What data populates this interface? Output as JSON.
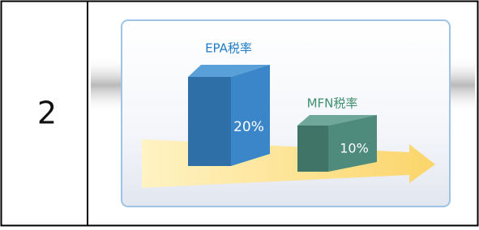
{
  "row": {
    "number": "2"
  },
  "illustration": {
    "bars": [
      {
        "label": "EPA税率",
        "value_label": "20%"
      },
      {
        "label": "MFN税率",
        "value_label": "10%"
      }
    ]
  }
}
